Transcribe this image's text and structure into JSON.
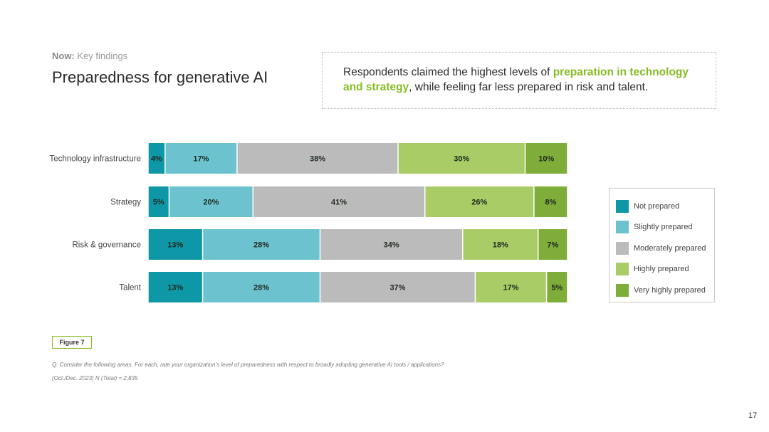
{
  "header": {
    "eyebrow_bold": "Now:",
    "eyebrow_rest": " Key findings",
    "title": "Preparedness for generative AI"
  },
  "callout": {
    "text_before": "Respondents claimed the highest levels of ",
    "highlight": "preparation in technology and strategy",
    "text_after": ", while feeling far less prepared in risk and talent."
  },
  "chart_data": {
    "type": "bar",
    "orientation": "horizontal",
    "stacked": true,
    "percent_scale": true,
    "title": "",
    "xlabel": "",
    "ylabel": "",
    "categories": [
      "Technology infrastructure",
      "Strategy",
      "Risk & governance",
      "Talent"
    ],
    "series": [
      {
        "name": "Not prepared",
        "color": "#0e97a7",
        "values": [
          4,
          5,
          13,
          13
        ],
        "labels": [
          "4%",
          "5%",
          "13%",
          "13%"
        ]
      },
      {
        "name": "Slightly prepared",
        "color": "#6cc3cf",
        "values": [
          17,
          20,
          28,
          28
        ],
        "labels": [
          "17%",
          "20%",
          "28%",
          "28%"
        ]
      },
      {
        "name": "Moderately prepared",
        "color": "#bbbbbb",
        "values": [
          38,
          41,
          34,
          37
        ],
        "labels": [
          "38%",
          "41%",
          "34%",
          "37%"
        ]
      },
      {
        "name": "Highly prepared",
        "color": "#a9cc67",
        "values": [
          30,
          26,
          18,
          17
        ],
        "labels": [
          "30%",
          "26%",
          "18%",
          "17%"
        ]
      },
      {
        "name": "Very highly prepared",
        "color": "#7fad39",
        "values": [
          10,
          8,
          7,
          5
        ],
        "labels": [
          "10%",
          "8%",
          "7%",
          "5%"
        ]
      }
    ],
    "legend_position": "right",
    "grid": false
  },
  "footer": {
    "figure_label": "Figure 7",
    "question": "Q: Consider the following areas. For each, rate your organization’s level of preparedness with respect to broadly adopting generative AI tools / applications?",
    "sample": "(Oct./Dec. 2023) N (Total) = 2,835",
    "page_number": "17"
  },
  "colors": {
    "accent_green": "#86bc25",
    "segment_text": "#1f2a1f"
  }
}
